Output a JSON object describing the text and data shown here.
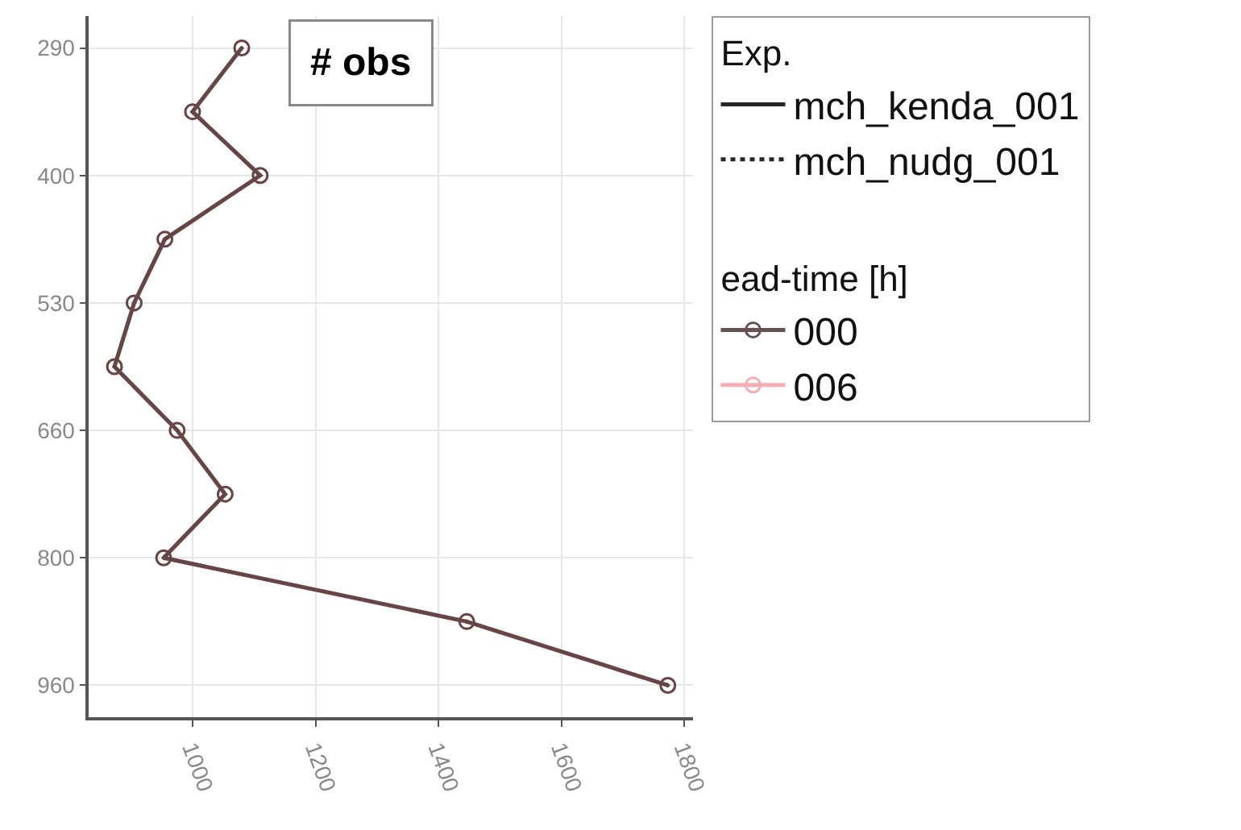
{
  "chart_data": {
    "type": "line",
    "title": "# obs",
    "orientation": "horizontal",
    "categories": [
      "290",
      null,
      "400",
      null,
      "530",
      null,
      "660",
      null,
      "800",
      null,
      "960"
    ],
    "xlim": [
      831,
      1814
    ],
    "xticks": [
      1000,
      1200,
      1400,
      1600,
      1800
    ],
    "grid": true,
    "marker": "circle",
    "legend": "right",
    "legend_title": [
      "Exp.",
      "ead-time [h]"
    ],
    "series": [
      {
        "name": "mch_kenda_001",
        "color": "#000000",
        "line_style": "solid",
        "values": [
          null,
          null,
          null,
          null,
          null,
          null,
          null,
          null,
          null,
          null,
          null
        ]
      },
      {
        "name": "mch_nudg_001",
        "color": "#000000",
        "line_style": "dotted",
        "values": [
          null,
          null,
          null,
          null,
          null,
          null,
          null,
          null,
          null,
          null,
          null
        ]
      },
      {
        "name": "000",
        "color": "#4d3535",
        "line_style": "solid",
        "values": [
          1080,
          1000,
          1110,
          955,
          905,
          873,
          975,
          1053,
          953,
          1446,
          1773
        ]
      },
      {
        "name": "006",
        "color": "#f4a0a8",
        "line_style": "solid",
        "values": [
          1080,
          1000,
          1110,
          955,
          905,
          873,
          975,
          1053,
          953,
          1446,
          1773
        ]
      }
    ]
  }
}
